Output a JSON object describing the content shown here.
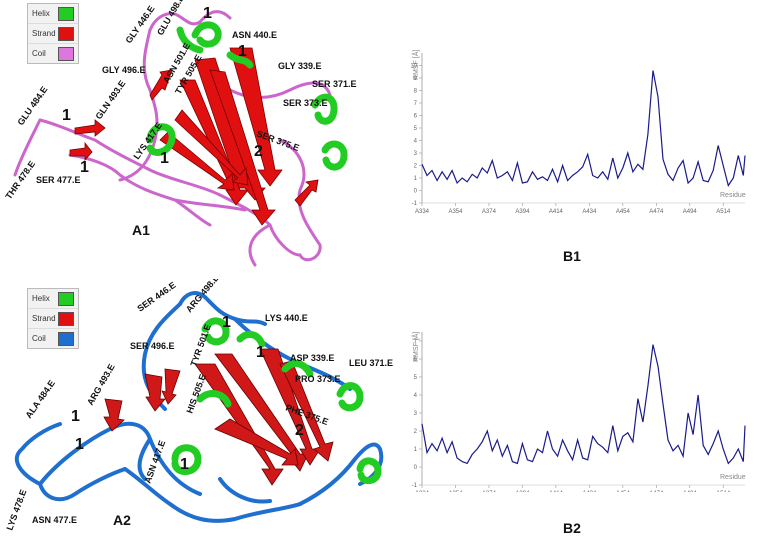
{
  "panel_labels": {
    "a1": "A1",
    "b1": "B1",
    "a2": "A2",
    "b2": "B2"
  },
  "legend": [
    {
      "label": "Helix",
      "color": "#22cc22"
    },
    {
      "label": "Strand",
      "color": "#e01010"
    },
    {
      "label": "Coil_a1",
      "color": "#dd77dd"
    },
    {
      "label": "Coil_a2",
      "color": "#1f6fd0"
    }
  ],
  "legend_text": {
    "helix": "Helix",
    "strand": "Strand",
    "coil": "Coil"
  },
  "a1_labels": {
    "gly446": "GLY 446.E",
    "glu498": "GLU 498.E",
    "asn440": "ASN 440.E",
    "asn501": "ASN 501.E",
    "tyr505": "TYR 505.E",
    "gly339": "GLY 339.E",
    "ser371": "SER 371.E",
    "ser373": "SER 373.E",
    "gly496": "GLY 496.E",
    "gln493": "GLN 493.E",
    "glu484": "GLU 484.E",
    "lys417": "LYS 417.E",
    "ser375": "SER 375.E",
    "thr478": "THR 478.E",
    "ser477": "SER 477.E"
  },
  "a2_labels": {
    "ser446": "SER 446.E",
    "arg498": "ARG 498.E",
    "lys440": "LYS 440.E",
    "tyr501": "TYR 501.E",
    "ser496": "SER 496.E",
    "asp339": "ASP 339.E",
    "leu371": "LEU 371.E",
    "his505": "HIS 505.E",
    "pro373": "PRO 373.E",
    "arg493": "ARG 493.E",
    "phe375": "PHE 375.E",
    "ala484": "ALA 484.E",
    "asn417": "ASN 417.E",
    "lys478": "LYS 478.E",
    "asn477": "ASN 477.E"
  },
  "site_number_1": "1",
  "site_number_2": "2",
  "chart_data": [
    {
      "type": "line",
      "panel": "B1",
      "ylabel": "RMSF [Å]",
      "xlabel": "Residue",
      "ylim": [
        -1,
        11
      ],
      "yticks": [
        -1,
        0,
        1,
        2,
        3,
        4,
        5,
        6,
        7,
        8,
        9,
        10
      ],
      "xticks": [
        "A334",
        "A354",
        "A374",
        "A394",
        "A414",
        "A434",
        "A454",
        "A474",
        "A494",
        "A514"
      ],
      "x": [
        334,
        337,
        340,
        343,
        346,
        349,
        352,
        355,
        358,
        361,
        364,
        367,
        370,
        373,
        376,
        379,
        382,
        385,
        388,
        391,
        394,
        397,
        400,
        403,
        406,
        409,
        412,
        415,
        418,
        421,
        424,
        427,
        430,
        433,
        436,
        439,
        442,
        445,
        448,
        451,
        454,
        457,
        460,
        463,
        466,
        469,
        472,
        475,
        478,
        481,
        484,
        487,
        490,
        493,
        496,
        499,
        502,
        505,
        508,
        511,
        514,
        517,
        520,
        523,
        526,
        527
      ],
      "values": [
        2.1,
        1.2,
        1.6,
        0.8,
        1.5,
        0.9,
        1.6,
        0.6,
        1.0,
        0.7,
        1.3,
        1.0,
        1.8,
        1.4,
        2.4,
        1.0,
        1.2,
        1.5,
        0.8,
        2.2,
        0.6,
        0.7,
        1.5,
        0.9,
        1.1,
        0.8,
        1.7,
        0.7,
        2.0,
        0.8,
        1.2,
        1.5,
        1.9,
        2.9,
        1.2,
        1.0,
        1.5,
        0.9,
        2.6,
        1.0,
        1.8,
        3.0,
        1.5,
        2.1,
        1.7,
        4.5,
        9.6,
        7.5,
        2.5,
        1.3,
        0.8,
        1.8,
        2.4,
        0.6,
        1.0,
        2.3,
        0.8,
        0.7,
        1.6,
        3.6,
        2.0,
        0.4,
        1.0,
        2.8,
        1.2,
        2.8
      ]
    },
    {
      "type": "line",
      "panel": "B2",
      "ylabel": "RMSF [Å]",
      "xlabel": "Residue",
      "ylim": [
        -1,
        7.5
      ],
      "yticks": [
        -1,
        0,
        1,
        2,
        3,
        4,
        5,
        6,
        7
      ],
      "xticks": [
        "A334",
        "A354",
        "A374",
        "A394",
        "A414",
        "A434",
        "A454",
        "A474",
        "A494",
        "A514"
      ],
      "x": [
        334,
        337,
        340,
        343,
        346,
        349,
        352,
        355,
        358,
        361,
        364,
        367,
        370,
        373,
        376,
        379,
        382,
        385,
        388,
        391,
        394,
        397,
        400,
        403,
        406,
        409,
        412,
        415,
        418,
        421,
        424,
        427,
        430,
        433,
        436,
        439,
        442,
        445,
        448,
        451,
        454,
        457,
        460,
        463,
        466,
        469,
        472,
        475,
        478,
        481,
        484,
        487,
        490,
        493,
        496,
        499,
        502,
        505,
        508,
        511,
        514,
        517,
        520,
        523,
        526,
        527
      ],
      "values": [
        2.4,
        0.8,
        1.3,
        0.9,
        1.6,
        0.8,
        1.4,
        0.5,
        0.3,
        0.2,
        0.7,
        1.0,
        1.4,
        2.0,
        0.9,
        1.5,
        0.6,
        1.2,
        0.3,
        0.2,
        1.3,
        0.4,
        0.3,
        1.0,
        0.8,
        2.0,
        1.0,
        0.6,
        1.5,
        0.9,
        0.4,
        1.5,
        0.5,
        0.4,
        1.7,
        1.3,
        1.1,
        0.8,
        2.3,
        0.9,
        1.7,
        1.9,
        1.4,
        3.8,
        2.5,
        4.5,
        6.8,
        5.6,
        3.5,
        1.5,
        0.9,
        1.2,
        0.6,
        3.0,
        1.8,
        4.0,
        1.2,
        0.7,
        1.3,
        2.0,
        1.0,
        0.2,
        0.5,
        1.0,
        0.3,
        2.3
      ]
    }
  ]
}
